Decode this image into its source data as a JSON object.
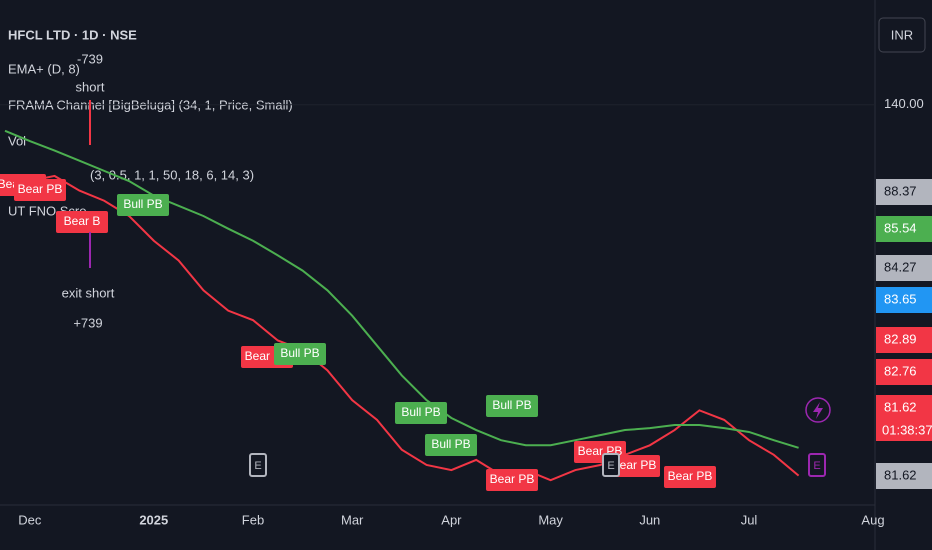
{
  "header": {
    "symbol": "HFCL LTD · 1D · NSE",
    "currency": "INR",
    "indicators": [
      "EMA+ (D, 8)",
      "FRAMA Channel [BigBeluga] (34, 1, Price, Small)",
      "Vol",
      "(3, 0.5, 1, 1, 50, 18, 6, 14, 3)",
      "UT FNO Scre"
    ]
  },
  "chart_data": {
    "type": "line",
    "categories": [
      null,
      "Dec",
      null,
      null,
      null,
      null,
      "2025",
      null,
      null,
      null,
      "Feb",
      null,
      null,
      null,
      "Mar",
      null,
      null,
      null,
      "Apr",
      null,
      null,
      null,
      "May",
      null,
      null,
      null,
      "Jun",
      null,
      null,
      null,
      "Jul",
      null,
      null,
      null,
      null,
      "Aug"
    ],
    "series": [
      {
        "name": "Close",
        "color": "#f23645",
        "values": [
          127.3,
          128.0,
          128.8,
          126.5,
          124.9,
          122.5,
          118.6,
          115.5,
          110.8,
          107.6,
          106.1,
          102.9,
          101.4,
          98.2,
          93.5,
          90.4,
          85.7,
          83.3,
          82.5,
          84.1,
          81.7,
          82.5,
          80.9,
          82.5,
          83.3,
          84.9,
          86.4,
          88.8,
          91.9,
          90.4,
          87.2,
          84.9,
          81.62,
          null,
          null,
          null
        ]
      },
      {
        "name": "EMA+",
        "color": "#4caf50",
        "values": [
          135.9,
          134.3,
          132.8,
          131.2,
          129.6,
          128.0,
          125.7,
          124.1,
          122.5,
          120.5,
          118.6,
          116.3,
          113.9,
          110.8,
          106.8,
          102.1,
          97.4,
          93.5,
          90.7,
          88.8,
          87.2,
          86.4,
          86.4,
          87.2,
          88.0,
          88.8,
          89.1,
          89.6,
          89.6,
          89.1,
          88.5,
          87.2,
          86.0,
          null,
          null,
          null
        ]
      }
    ],
    "ylim": [
      77,
      156.5
    ],
    "yticks": [
      {
        "value": 140,
        "label": "140.00"
      }
    ],
    "grid": true,
    "price_labels": [
      {
        "value": 88.37,
        "color": "#b2b5be"
      },
      {
        "value": 85.54,
        "color": "#4caf50"
      },
      {
        "value": 84.27,
        "color": "#b2b5be"
      },
      {
        "value": 83.65,
        "color": "#2196f3"
      },
      {
        "value": 82.89,
        "color": "#f23645"
      },
      {
        "value": 82.76,
        "color": "#f23645"
      },
      {
        "value": 81.62,
        "color": "#f23645"
      },
      {
        "value": 81.62,
        "color": "#b2b5be"
      }
    ],
    "countdown": "01:38:37",
    "signals": [
      {
        "label": "Bear PB",
        "kind": "bear"
      },
      {
        "label": "Bear PB",
        "kind": "bear"
      },
      {
        "label": "Bear B",
        "kind": "bear"
      },
      {
        "label": "Bull PB",
        "kind": "bull"
      },
      {
        "label": "Bear PB",
        "kind": "bear"
      },
      {
        "label": "Bull PB",
        "kind": "bull"
      },
      {
        "label": "Bull PB",
        "kind": "bull"
      },
      {
        "label": "Bull PB",
        "kind": "bull"
      },
      {
        "label": "Bull PB",
        "kind": "bull"
      },
      {
        "label": "Bear PB",
        "kind": "bear"
      },
      {
        "label": "Bear PB",
        "kind": "bear"
      },
      {
        "label": "Bear PB",
        "kind": "bear"
      },
      {
        "label": "Bear PB",
        "kind": "bear"
      }
    ],
    "trades": [
      {
        "label": "short",
        "pnl": "-739"
      },
      {
        "label": "exit short",
        "pnl": "+739"
      }
    ],
    "earnings": [
      "E",
      "E",
      "E"
    ]
  }
}
